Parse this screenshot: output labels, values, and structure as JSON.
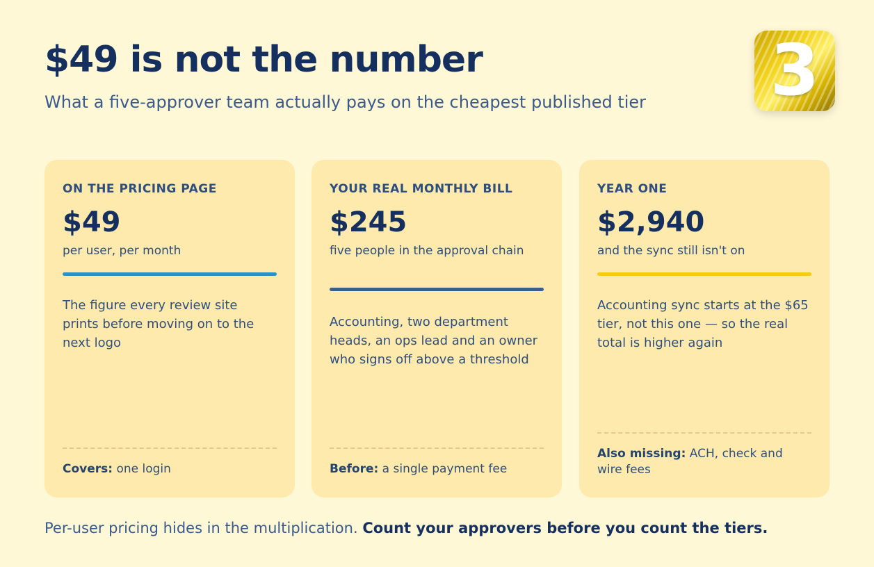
{
  "header": {
    "title": "$49 is not the number",
    "subtitle": "What a five-approver team actually pays on the cheapest published tier"
  },
  "logo": {
    "mark": "3",
    "icon": "logo-3-icon"
  },
  "cards": [
    {
      "eyebrow": "ON THE PRICING PAGE",
      "amount": "$49",
      "caption": "per user, per month",
      "accent": "#2a91c6",
      "body": "The figure every review site prints before moving on to the next logo",
      "note_label": "Covers:",
      "note_text": " one login"
    },
    {
      "eyebrow": "YOUR REAL MONTHLY BILL",
      "amount": "$245",
      "caption": "five people in the approval chain",
      "accent": "#3a5f8f",
      "body": "Accounting, two department heads, an ops lead and an owner who signs off above a threshold",
      "note_label": "Before:",
      "note_text": " a single payment fee"
    },
    {
      "eyebrow": "YEAR ONE",
      "amount": "$2,940",
      "caption": "and the sync still isn't on",
      "accent": "#f5cd0c",
      "body": "Accounting sync starts at the $65 tier, not this one — so the real total is higher again",
      "note_label": "Also missing:",
      "note_text": " ACH, check and wire fees"
    }
  ],
  "footer": {
    "lead": "Per-user pricing hides in the multiplication. ",
    "emphasis": "Count your approvers before you count the tiers."
  }
}
